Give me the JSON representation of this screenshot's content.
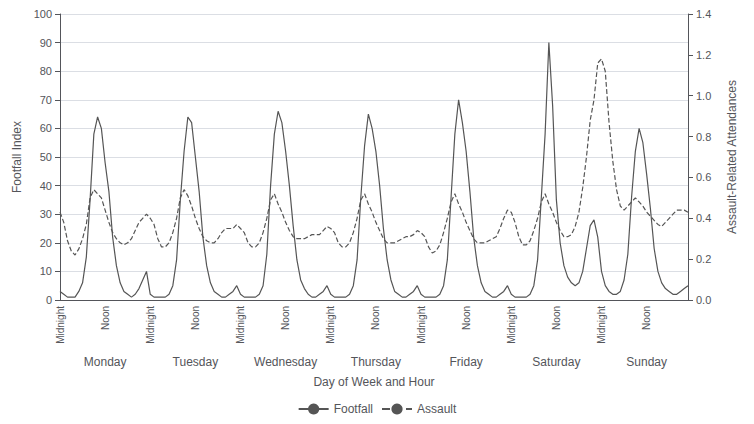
{
  "chart_data": {
    "type": "line",
    "xlabel": "Day of Week and Hour",
    "ylabel": "Footfall Index",
    "y2label": "Assault-Related Attendances",
    "categories": [
      "Midnight",
      null,
      null,
      null,
      null,
      null,
      null,
      null,
      null,
      null,
      null,
      null,
      "Noon",
      null,
      null,
      null,
      null,
      null,
      null,
      null,
      null,
      null,
      null,
      null,
      "Midnight",
      null,
      null,
      null,
      null,
      null,
      null,
      null,
      null,
      null,
      null,
      null,
      "Noon",
      null,
      null,
      null,
      null,
      null,
      null,
      null,
      null,
      null,
      null,
      null,
      "Midnight",
      null,
      null,
      null,
      null,
      null,
      null,
      null,
      null,
      null,
      null,
      null,
      "Noon",
      null,
      null,
      null,
      null,
      null,
      null,
      null,
      null,
      null,
      null,
      null,
      "Midnight",
      null,
      null,
      null,
      null,
      null,
      null,
      null,
      null,
      null,
      null,
      null,
      "Noon",
      null,
      null,
      null,
      null,
      null,
      null,
      null,
      null,
      null,
      null,
      null,
      "Midnight",
      null,
      null,
      null,
      null,
      null,
      null,
      null,
      null,
      null,
      null,
      null,
      "Noon",
      null,
      null,
      null,
      null,
      null,
      null,
      null,
      null,
      null,
      null,
      null,
      "Midnight",
      null,
      null,
      null,
      null,
      null,
      null,
      null,
      null,
      null,
      null,
      null,
      "Noon",
      null,
      null,
      null,
      null,
      null,
      null,
      null,
      null,
      null,
      null,
      null,
      "Midnight",
      null,
      null,
      null,
      null,
      null,
      null,
      null,
      null,
      null,
      null,
      null,
      "Noon",
      null,
      null,
      null,
      null,
      null,
      null,
      null,
      null,
      null,
      null,
      null
    ],
    "annotations": [
      {
        "text": "Monday",
        "x": 12
      },
      {
        "text": "Tuesday",
        "x": 36
      },
      {
        "text": "Wednesday",
        "x": 60
      },
      {
        "text": "Thursday",
        "x": 84
      },
      {
        "text": "Friday",
        "x": 108
      },
      {
        "text": "Saturday",
        "x": 132
      },
      {
        "text": "Sunday",
        "x": 156
      }
    ],
    "series": [
      {
        "name": "Footfall",
        "color": "#555555",
        "line_style": "solid",
        "values": [
          3,
          2,
          1,
          1,
          1,
          3,
          6,
          15,
          35,
          58,
          64,
          60,
          48,
          38,
          22,
          12,
          6,
          3,
          2,
          1,
          2,
          4,
          7,
          10,
          2,
          1,
          1,
          1,
          1,
          2,
          5,
          14,
          35,
          52,
          64,
          62,
          50,
          38,
          22,
          12,
          6,
          3,
          2,
          1,
          1,
          2,
          3,
          5,
          2,
          1,
          1,
          1,
          1,
          2,
          5,
          16,
          40,
          58,
          66,
          62,
          52,
          40,
          26,
          14,
          7,
          4,
          2,
          1,
          1,
          2,
          3,
          5,
          2,
          1,
          1,
          1,
          1,
          2,
          5,
          14,
          36,
          54,
          65,
          60,
          52,
          40,
          25,
          14,
          7,
          3,
          2,
          1,
          1,
          2,
          3,
          5,
          2,
          1,
          1,
          1,
          1,
          2,
          5,
          14,
          36,
          58,
          70,
          62,
          52,
          38,
          22,
          12,
          6,
          3,
          2,
          1,
          1,
          2,
          3,
          5,
          2,
          1,
          1,
          1,
          1,
          2,
          5,
          14,
          36,
          58,
          90,
          68,
          35,
          20,
          12,
          8,
          6,
          5,
          6,
          10,
          18,
          26,
          28,
          22,
          10,
          5,
          3,
          2,
          2,
          3,
          7,
          16,
          36,
          52,
          60,
          55,
          44,
          32,
          18,
          10,
          6,
          4,
          3,
          2,
          2,
          3,
          4,
          5
        ]
      },
      {
        "name": "Assault",
        "color": "#555555",
        "line_style": "dashed",
        "axis": "y2",
        "values": [
          0.43,
          0.38,
          0.29,
          0.24,
          0.22,
          0.25,
          0.3,
          0.37,
          0.5,
          0.54,
          0.52,
          0.5,
          0.44,
          0.38,
          0.33,
          0.3,
          0.28,
          0.27,
          0.28,
          0.3,
          0.34,
          0.38,
          0.4,
          0.42,
          0.4,
          0.37,
          0.3,
          0.26,
          0.26,
          0.28,
          0.33,
          0.4,
          0.5,
          0.54,
          0.51,
          0.46,
          0.4,
          0.35,
          0.31,
          0.29,
          0.28,
          0.28,
          0.3,
          0.33,
          0.35,
          0.35,
          0.35,
          0.37,
          0.35,
          0.33,
          0.28,
          0.26,
          0.26,
          0.28,
          0.33,
          0.4,
          0.49,
          0.52,
          0.47,
          0.43,
          0.38,
          0.34,
          0.31,
          0.3,
          0.3,
          0.3,
          0.31,
          0.32,
          0.32,
          0.32,
          0.34,
          0.36,
          0.35,
          0.33,
          0.28,
          0.26,
          0.26,
          0.28,
          0.33,
          0.4,
          0.49,
          0.52,
          0.47,
          0.43,
          0.38,
          0.34,
          0.3,
          0.28,
          0.28,
          0.28,
          0.29,
          0.3,
          0.31,
          0.31,
          0.32,
          0.34,
          0.33,
          0.31,
          0.26,
          0.23,
          0.24,
          0.27,
          0.33,
          0.4,
          0.48,
          0.52,
          0.47,
          0.43,
          0.38,
          0.34,
          0.3,
          0.28,
          0.28,
          0.28,
          0.29,
          0.3,
          0.31,
          0.35,
          0.4,
          0.44,
          0.43,
          0.38,
          0.31,
          0.27,
          0.27,
          0.29,
          0.34,
          0.4,
          0.48,
          0.52,
          0.47,
          0.43,
          0.38,
          0.34,
          0.31,
          0.31,
          0.32,
          0.36,
          0.43,
          0.55,
          0.7,
          0.88,
          0.98,
          1.16,
          1.18,
          1.12,
          0.87,
          0.68,
          0.54,
          0.46,
          0.44,
          0.46,
          0.48,
          0.5,
          0.48,
          0.46,
          0.43,
          0.41,
          0.39,
          0.37,
          0.36,
          0.38,
          0.4,
          0.42,
          0.44,
          0.44,
          0.44,
          0.43
        ]
      }
    ],
    "ylim": [
      0,
      100
    ],
    "yticks": [
      0,
      10,
      20,
      30,
      40,
      50,
      60,
      70,
      80,
      90,
      100
    ],
    "y2lim": [
      0,
      1.4
    ],
    "y2ticks": [
      {
        "value": 0,
        "label": "0.0"
      },
      0.2,
      0.4,
      0.6,
      0.8,
      {
        "value": 1.0,
        "label": "1.0"
      },
      1.2,
      1.4
    ],
    "grid": true,
    "legend": "bottom"
  }
}
